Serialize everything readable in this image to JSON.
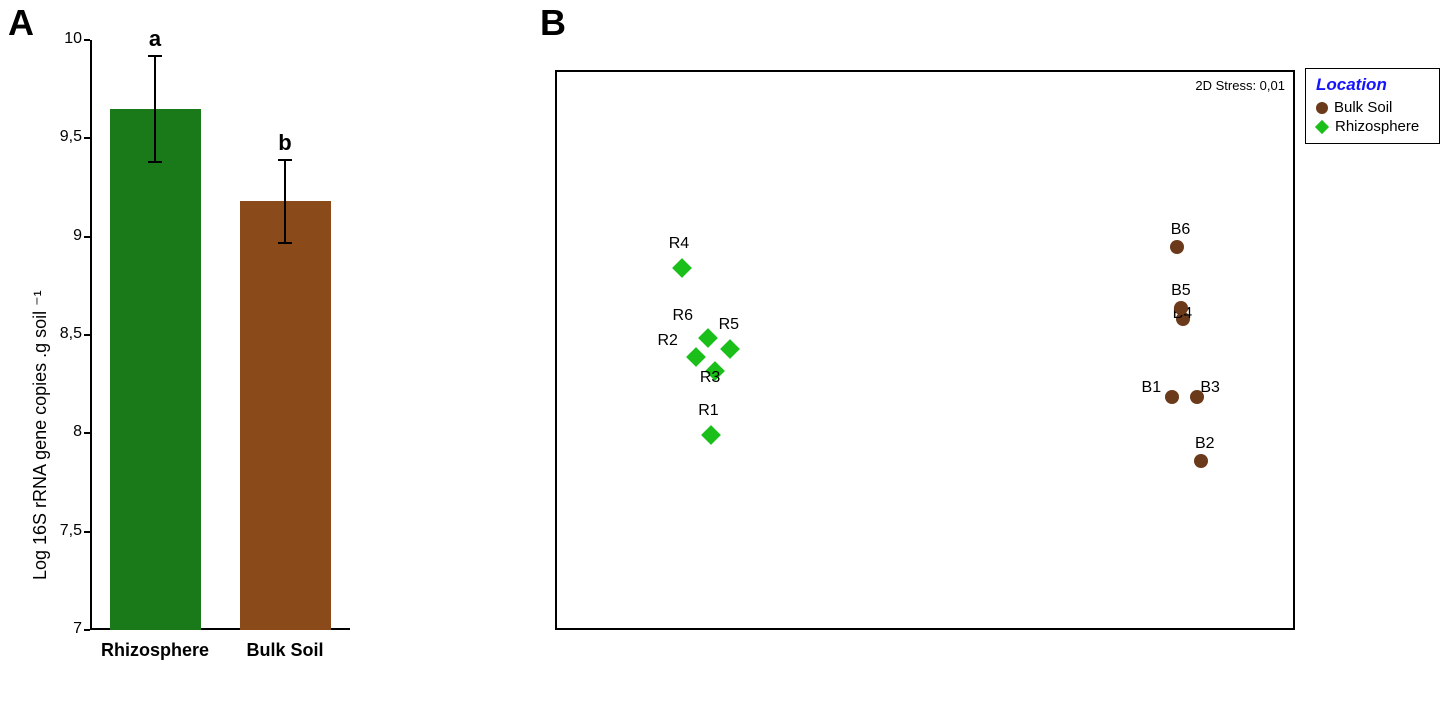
{
  "panelA": {
    "label": "A",
    "chart": {
      "type": "bar",
      "ylabel": "Log 16S rRNA gene copies .g soil ⁻¹",
      "categories": [
        "Rhizosphere",
        "Bulk Soil"
      ],
      "values": [
        9.65,
        9.18
      ],
      "errors": [
        0.27,
        0.21
      ],
      "sig_labels": [
        "a",
        "b"
      ],
      "bar_colors": [
        "#1a7a1a",
        "#8a4a1a"
      ],
      "ylim": [
        7,
        10
      ],
      "yticks": [
        7,
        7.5,
        8,
        8.5,
        9,
        9.5,
        10
      ],
      "ytick_labels": [
        "7",
        "7,5",
        "8",
        "8,5",
        "9",
        "9,5",
        "10"
      ],
      "bar_width": 0.7,
      "background_color": "#ffffff",
      "axis_color": "#000000",
      "label_fontsize": 18,
      "ylabel_fontsize": 18
    }
  },
  "panelB": {
    "label": "B",
    "scatter": {
      "type": "scatter",
      "stress_text": "2D Stress: 0,01",
      "xlim": [
        0,
        1
      ],
      "ylim": [
        0,
        1
      ],
      "background_color": "#ffffff",
      "border_color": "#000000",
      "groups": {
        "rhizosphere": {
          "marker": "diamond",
          "color": "#1abf1a",
          "size": 14,
          "points": [
            {
              "id": "R1",
              "x": 0.2,
              "y": 0.36,
              "label_dx": -6,
              "label_dy": -26
            },
            {
              "id": "R2",
              "x": 0.18,
              "y": 0.5,
              "label_dx": -32,
              "label_dy": -18
            },
            {
              "id": "R3",
              "x": 0.205,
              "y": 0.475,
              "label_dx": -8,
              "label_dy": 5
            },
            {
              "id": "R4",
              "x": 0.16,
              "y": 0.66,
              "label_dx": -6,
              "label_dy": -26
            },
            {
              "id": "R5",
              "x": 0.225,
              "y": 0.515,
              "label_dx": -4,
              "label_dy": -26
            },
            {
              "id": "R6",
              "x": 0.195,
              "y": 0.535,
              "label_dx": -28,
              "label_dy": -24
            }
          ]
        },
        "bulksoil": {
          "marker": "circle",
          "color": "#6b3a1a",
          "size": 14,
          "points": [
            {
              "id": "B1",
              "x": 0.835,
              "y": 0.415,
              "label_dx": -30,
              "label_dy": -18
            },
            {
              "id": "B2",
              "x": 0.875,
              "y": 0.3,
              "label_dx": -6,
              "label_dy": -26
            },
            {
              "id": "B3",
              "x": 0.87,
              "y": 0.415,
              "label_dx": 3,
              "label_dy": -18
            },
            {
              "id": "B4",
              "x": 0.85,
              "y": 0.555,
              "label_dx": -10,
              "label_dy": -14
            },
            {
              "id": "B5",
              "x": 0.848,
              "y": 0.575,
              "label_dx": -10,
              "label_dy": -26
            },
            {
              "id": "B6",
              "x": 0.842,
              "y": 0.685,
              "label_dx": -6,
              "label_dy": -26
            }
          ]
        }
      }
    },
    "legend": {
      "title": "Location",
      "items": [
        {
          "label": "Bulk Soil",
          "marker": "circle",
          "color": "#6b3a1a"
        },
        {
          "label": "Rhizosphere",
          "marker": "diamond",
          "color": "#1abf1a"
        }
      ]
    }
  }
}
